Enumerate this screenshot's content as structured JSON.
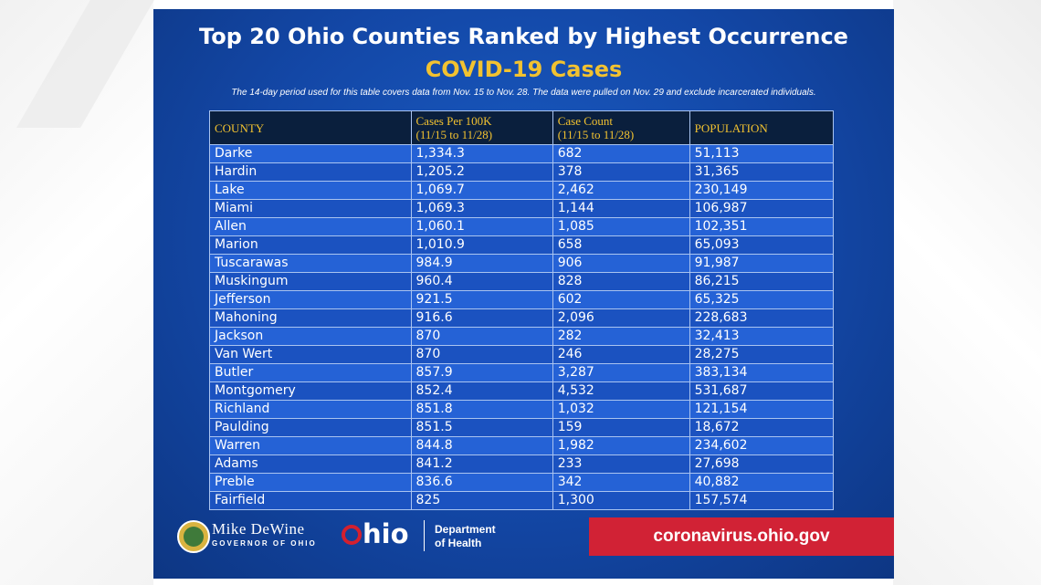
{
  "header": {
    "title": "Top 20 Ohio Counties Ranked by Highest Occurrence",
    "subtitle": "COVID-19 Cases",
    "note": "The 14-day period used for this table covers data from Nov. 15 to Nov. 28. The data were pulled on Nov. 29 and exclude incarcerated individuals."
  },
  "table": {
    "columns": [
      {
        "label": "COUNTY",
        "sub": ""
      },
      {
        "label": "Cases Per 100K",
        "sub": "(11/15 to 11/28)"
      },
      {
        "label": "Case Count",
        "sub": "(11/15 to 11/28)"
      },
      {
        "label": "POPULATION",
        "sub": ""
      }
    ],
    "rows": [
      [
        "Darke",
        "1,334.3",
        "682",
        "51,113"
      ],
      [
        "Hardin",
        "1,205.2",
        "378",
        "31,365"
      ],
      [
        "Lake",
        "1,069.7",
        "2,462",
        "230,149"
      ],
      [
        "Miami",
        "1,069.3",
        "1,144",
        "106,987"
      ],
      [
        "Allen",
        "1,060.1",
        "1,085",
        "102,351"
      ],
      [
        "Marion",
        "1,010.9",
        "658",
        "65,093"
      ],
      [
        "Tuscarawas",
        "984.9",
        "906",
        "91,987"
      ],
      [
        "Muskingum",
        "960.4",
        "828",
        "86,215"
      ],
      [
        "Jefferson",
        "921.5",
        "602",
        "65,325"
      ],
      [
        "Mahoning",
        "916.6",
        "2,096",
        "228,683"
      ],
      [
        "Jackson",
        "870",
        "282",
        "32,413"
      ],
      [
        "Van Wert",
        "870",
        "246",
        "28,275"
      ],
      [
        "Butler",
        "857.9",
        "3,287",
        "383,134"
      ],
      [
        "Montgomery",
        "852.4",
        "4,532",
        "531,687"
      ],
      [
        "Richland",
        "851.8",
        "1,032",
        "121,154"
      ],
      [
        "Paulding",
        "851.5",
        "159",
        "18,672"
      ],
      [
        "Warren",
        "844.8",
        "1,982",
        "234,602"
      ],
      [
        "Adams",
        "841.2",
        "233",
        "27,698"
      ],
      [
        "Preble",
        "836.6",
        "342",
        "40,882"
      ],
      [
        "Fairfield",
        "825",
        "1,300",
        "157,574"
      ]
    ]
  },
  "footer": {
    "governor_name": "Mike DeWine",
    "governor_title": "GOVERNOR OF OHIO",
    "ohio_logo_text": "hio",
    "department_line1": "Department",
    "department_line2": "of Health",
    "url": "coronavirus.ohio.gov"
  },
  "colors": {
    "panel_blue": "#1347a6",
    "header_gold": "#f2c230",
    "header_row_bg": "#0a1f3d",
    "row_light": "#2562d6",
    "row_dark": "#1b52c0",
    "url_red": "#d12235"
  }
}
